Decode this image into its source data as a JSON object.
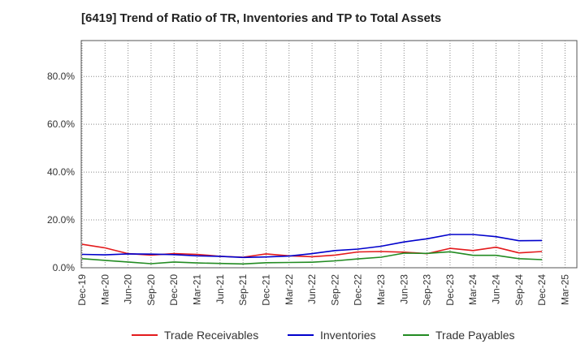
{
  "chart_data": {
    "type": "line",
    "title": "[6419]  Trend of Ratio of TR, Inventories and TP to Total Assets",
    "xlabel": "",
    "ylabel": "",
    "ylim": [
      0,
      95
    ],
    "yticks": [
      0,
      20,
      40,
      60,
      80
    ],
    "ytick_labels": [
      "0.0%",
      "20.0%",
      "40.0%",
      "60.0%",
      "80.0%"
    ],
    "x": [
      "Dec-19",
      "Mar-20",
      "Jun-20",
      "Sep-20",
      "Dec-20",
      "Mar-21",
      "Jun-21",
      "Sep-21",
      "Dec-21",
      "Mar-22",
      "Jun-22",
      "Sep-22",
      "Dec-22",
      "Mar-23",
      "Jun-23",
      "Sep-23",
      "Dec-23",
      "Mar-24",
      "Jun-24",
      "Sep-24",
      "Dec-24",
      "Mar-25"
    ],
    "grid": true,
    "legend_position": "bottom",
    "series": [
      {
        "name": "Trade Receivables",
        "color": "#e31a1c",
        "values": [
          9.8,
          8.3,
          5.9,
          5.3,
          5.9,
          5.6,
          4.8,
          4.4,
          5.8,
          5.0,
          4.6,
          5.3,
          6.6,
          6.8,
          6.5,
          5.9,
          8.1,
          7.2,
          8.6,
          6.2,
          6.8,
          null
        ]
      },
      {
        "name": "Inventories",
        "color": "#0000cc",
        "values": [
          5.6,
          5.4,
          5.8,
          5.7,
          5.5,
          5.0,
          4.8,
          4.3,
          4.5,
          4.9,
          5.9,
          7.2,
          7.8,
          9.0,
          10.8,
          12.1,
          13.9,
          13.9,
          13.0,
          11.3,
          11.4,
          null
        ]
      },
      {
        "name": "Trade Payables",
        "color": "#228b22",
        "values": [
          3.8,
          3.1,
          2.4,
          1.7,
          2.4,
          2.0,
          1.8,
          1.6,
          2.1,
          2.2,
          2.3,
          2.9,
          3.7,
          4.4,
          6.1,
          6.0,
          6.7,
          5.2,
          5.2,
          3.8,
          3.4,
          null
        ]
      }
    ]
  }
}
